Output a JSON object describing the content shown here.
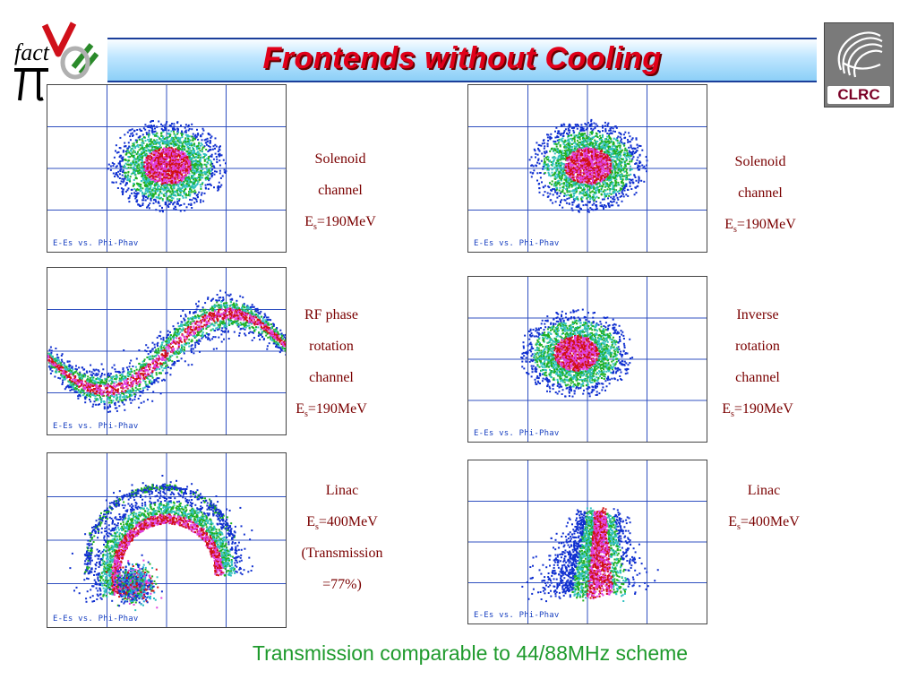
{
  "header": {
    "title": "Frontends without Cooling"
  },
  "logos": {
    "left_text": "fact",
    "right_text": "CLRC"
  },
  "plots": [
    {
      "label": "E-Es vs. Phi-Phav",
      "caption": [
        "Solenoid",
        "channel",
        "Es=190MeV"
      ]
    },
    {
      "label": "E-Es vs. Phi-Phav",
      "caption": [
        "Solenoid",
        "channel",
        "Es=190MeV"
      ]
    },
    {
      "label": "E-Es vs. Phi-Phav",
      "caption": [
        "RF phase",
        "rotation",
        "channel",
        "Es=190MeV"
      ]
    },
    {
      "label": "E-Es vs. Phi-Phav",
      "caption": [
        "Inverse",
        "rotation",
        "channel",
        "Es=190MeV"
      ]
    },
    {
      "label": "E-Es vs. Phi-Phav",
      "caption": [
        "Linac",
        "Es=400MeV",
        "(Transmission",
        "=77%)"
      ]
    },
    {
      "label": "E-Es vs. Phi-Phav",
      "caption": [
        "Linac",
        "Es=400MeV"
      ]
    }
  ],
  "footer": {
    "text": "Transmission comparable to 44/88MHz scheme"
  },
  "colors": {
    "title": "#e0001a",
    "footer": "#1e9a2c",
    "caption": "#7a0000"
  }
}
